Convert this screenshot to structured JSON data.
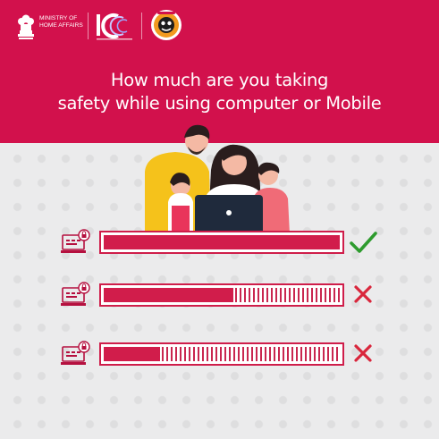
{
  "header": {
    "ministry_hindi": "गृह मंत्रालय",
    "ministry_text": "MINISTRY OF\nHOME AFFAIRS",
    "headline_line1": "How much are you taking",
    "headline_line2": "safety while using computer or Mobile"
  },
  "colors": {
    "brand": "#d2114c",
    "bar_fill": "#d11d4b",
    "check": "#2e9b2e",
    "cross": "#d9263c"
  },
  "icons": [
    "emblem-icon",
    "i4c-logo-icon",
    "cyber-dost-badge-icon",
    "family-illustration",
    "laptop-lock-icon",
    "check-icon",
    "cross-icon"
  ],
  "safety_bars": [
    {
      "level": 1.0,
      "result": "check"
    },
    {
      "level": 0.55,
      "result": "cross"
    },
    {
      "level": 0.24,
      "result": "cross"
    }
  ]
}
